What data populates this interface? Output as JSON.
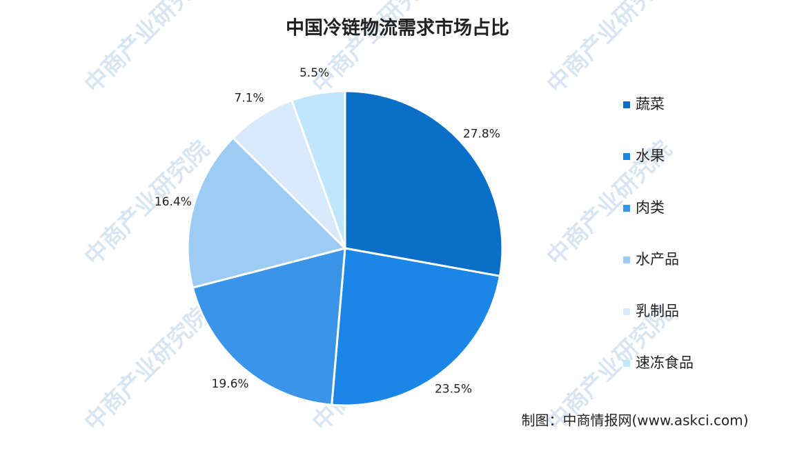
{
  "chart_data": {
    "type": "pie",
    "title": "中国冷链物流需求市场占比",
    "categories": [
      "蔬菜",
      "水果",
      "肉类",
      "水产品",
      "乳制品",
      "速冻食品"
    ],
    "values": [
      27.8,
      23.5,
      19.6,
      16.4,
      7.1,
      5.5
    ],
    "value_labels": [
      "27.8%",
      "23.5%",
      "19.6%",
      "16.4%",
      "7.1%",
      "5.5%"
    ],
    "colors": [
      "#0b6fca",
      "#1a86e5",
      "#3a95e9",
      "#9ccbf4",
      "#d7e9fa",
      "#c0e6fb"
    ],
    "legend": "right",
    "source": "制图：中商情报网(www.askci.com)",
    "watermark": "中商产业研究院"
  }
}
